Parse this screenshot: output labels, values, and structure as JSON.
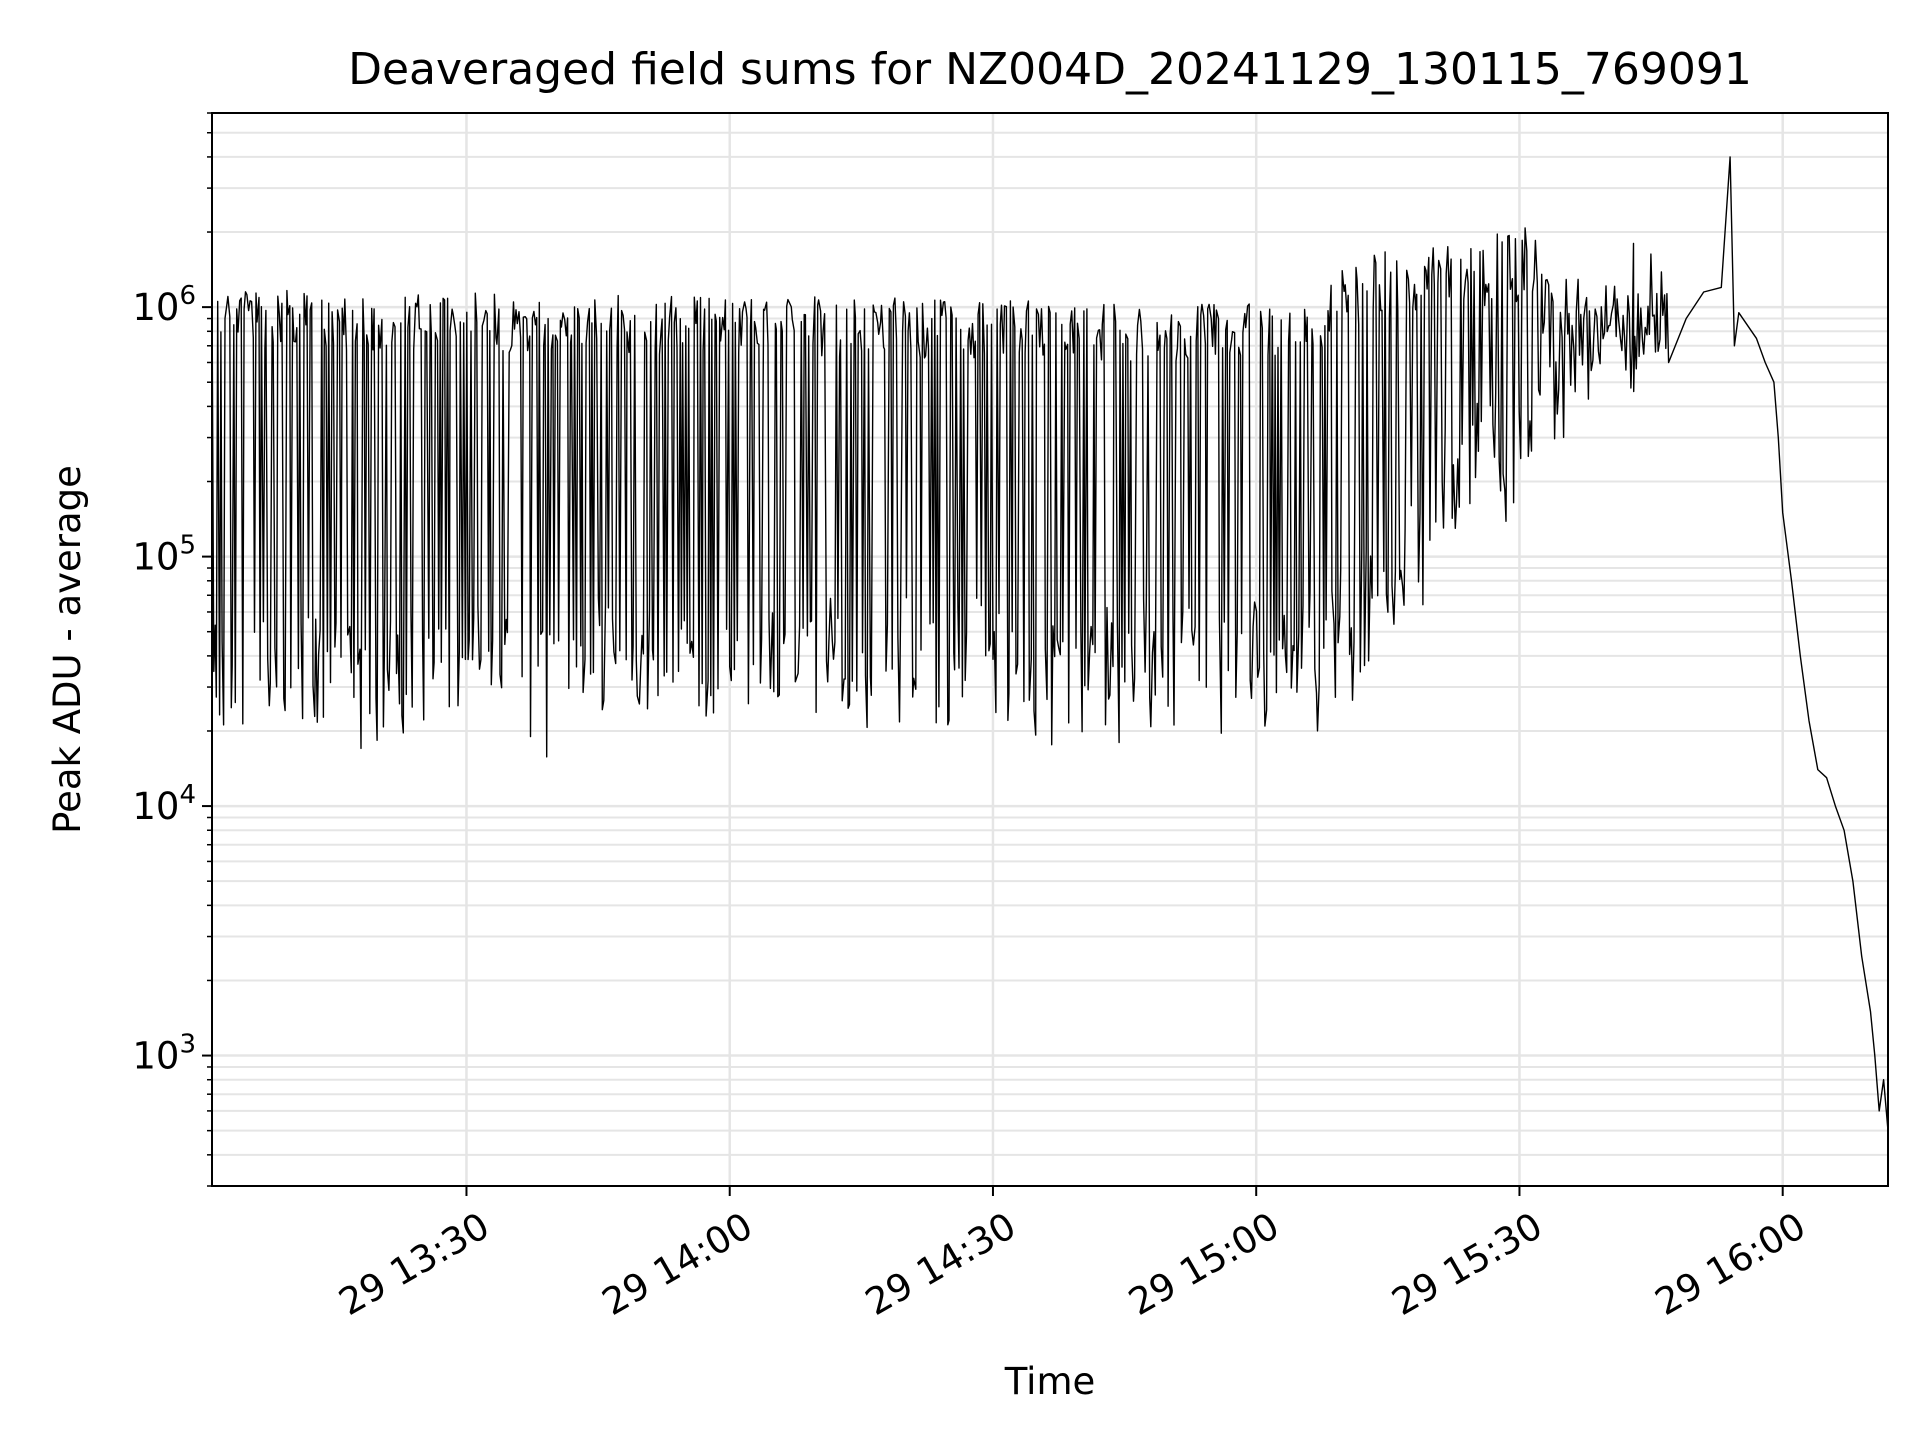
{
  "chart_data": {
    "type": "line",
    "title": "Deaveraged field sums for NZ004D_20241129_130115_769091",
    "xlabel": "Time",
    "ylabel": "Peak ADU - average",
    "x_unit": "time",
    "y_scale": "log",
    "xlim": [
      "2024-11-29 13:01",
      "2024-11-29 16:12"
    ],
    "ylim": [
      300,
      6000000
    ],
    "grid": true,
    "x_ticks": [
      {
        "t": "2024-11-29 13:30",
        "label": "29 13:30"
      },
      {
        "t": "2024-11-29 14:00",
        "label": "29 14:00"
      },
      {
        "t": "2024-11-29 14:30",
        "label": "29 14:30"
      },
      {
        "t": "2024-11-29 15:00",
        "label": "29 15:00"
      },
      {
        "t": "2024-11-29 15:30",
        "label": "29 15:30"
      },
      {
        "t": "2024-11-29 16:00",
        "label": "29 16:00"
      }
    ],
    "y_ticks": [
      {
        "value": 1000,
        "base": "10",
        "exp": "3"
      },
      {
        "value": 10000,
        "base": "10",
        "exp": "4"
      },
      {
        "value": 100000,
        "base": "10",
        "exp": "5"
      },
      {
        "value": 1000000,
        "base": "10",
        "exp": "6"
      }
    ],
    "series": [
      {
        "color": "#000000",
        "segments": [
          {
            "from": "2024-11-29 13:01",
            "to": "2024-11-29 15:08",
            "high": [
              900000,
              780000
            ],
            "low": [
              20000,
              22000
            ],
            "noise": 0.12
          },
          {
            "from": "2024-11-29 15:08",
            "to": "2024-11-29 15:17",
            "high": [
              950000,
              1300000
            ],
            "low": [
              25000,
              40000
            ],
            "noise": 0.15
          },
          {
            "from": "2024-11-29 15:17",
            "to": "2024-11-29 15:32",
            "high": [
              1300000,
              1500000
            ],
            "low": [
              60000,
              200000
            ],
            "noise": 0.15
          },
          {
            "from": "2024-11-29 15:32",
            "to": "2024-11-29 15:47",
            "high": [
              1000000,
              800000
            ],
            "low": [
              250000,
              500000
            ],
            "noise": 0.15
          }
        ],
        "points": [
          {
            "t": "2024-11-29 15:43",
            "y": 1800000
          },
          {
            "t": "2024-11-29 15:47",
            "y": 600000
          },
          {
            "t": "2024-11-29 15:49",
            "y": 900000
          },
          {
            "t": "2024-11-29 15:51",
            "y": 1150000
          },
          {
            "t": "2024-11-29 15:53",
            "y": 1200000
          },
          {
            "t": "2024-11-29 15:54",
            "y": 4000000
          },
          {
            "t": "2024-11-29 15:54.5",
            "y": 700000
          },
          {
            "t": "2024-11-29 15:55",
            "y": 950000
          },
          {
            "t": "2024-11-29 15:57",
            "y": 750000
          },
          {
            "t": "2024-11-29 15:58",
            "y": 600000
          },
          {
            "t": "2024-11-29 15:59",
            "y": 500000
          },
          {
            "t": "2024-11-29 15:59.5",
            "y": 300000
          },
          {
            "t": "2024-11-29 16:00",
            "y": 150000
          },
          {
            "t": "2024-11-29 16:01",
            "y": 80000
          },
          {
            "t": "2024-11-29 16:02",
            "y": 40000
          },
          {
            "t": "2024-11-29 16:03",
            "y": 22000
          },
          {
            "t": "2024-11-29 16:04",
            "y": 14000
          },
          {
            "t": "2024-11-29 16:05",
            "y": 13000
          },
          {
            "t": "2024-11-29 16:06",
            "y": 10000
          },
          {
            "t": "2024-11-29 16:07",
            "y": 8000
          },
          {
            "t": "2024-11-29 16:08",
            "y": 5000
          },
          {
            "t": "2024-11-29 16:09",
            "y": 2500
          },
          {
            "t": "2024-11-29 16:10",
            "y": 1500
          },
          {
            "t": "2024-11-29 16:10.5",
            "y": 1000
          },
          {
            "t": "2024-11-29 16:11",
            "y": 600
          },
          {
            "t": "2024-11-29 16:11.5",
            "y": 800
          },
          {
            "t": "2024-11-29 16:12",
            "y": 500
          }
        ]
      }
    ]
  }
}
